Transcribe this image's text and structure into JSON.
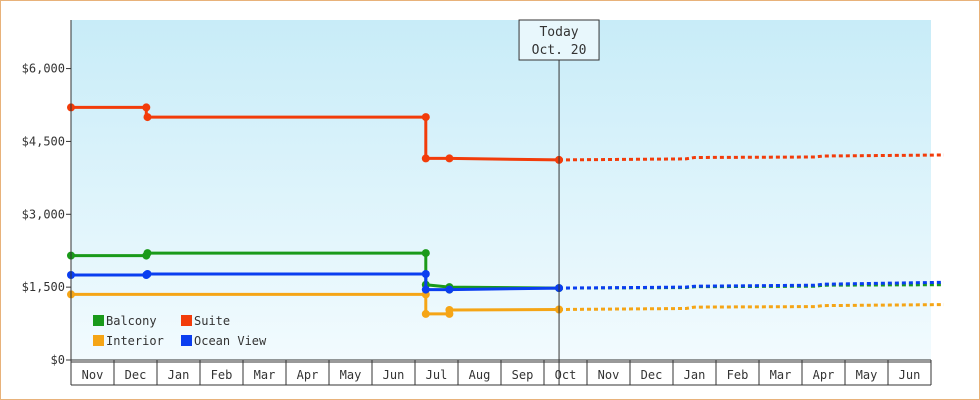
{
  "chart_data": {
    "type": "line",
    "step": true,
    "ylim": [
      0,
      7000
    ],
    "y_ticks": [
      0,
      1500,
      3000,
      4500,
      6000
    ],
    "y_tick_labels": [
      "$0",
      "$1,500",
      "$3,000",
      "$4,500",
      "$6,000"
    ],
    "months": [
      "Nov",
      "Dec",
      "Jan",
      "Feb",
      "Mar",
      "Apr",
      "May",
      "Jun",
      "Jul",
      "Aug",
      "Sep",
      "Oct",
      "Nov",
      "Dec",
      "Jan",
      "Feb",
      "Mar",
      "Apr",
      "May",
      "Jun"
    ],
    "today": {
      "line1": "Today",
      "line2": "Oct. 20",
      "x_month": 11.35
    },
    "grid": false,
    "legend_position": "bottom-left",
    "colors": {
      "plot_top": "#c8ecf8",
      "plot_bottom": "#f2fbfe",
      "frame_border": "#e8b27a",
      "axis": "#333333"
    },
    "series": [
      {
        "name": "Balcony",
        "color": "#1a9a1a",
        "points": [
          [
            0.0,
            2150
          ],
          [
            1.75,
            2150
          ],
          [
            1.75,
            2200
          ],
          [
            8.25,
            2200
          ],
          [
            8.25,
            1550
          ],
          [
            8.8,
            1500
          ],
          [
            11.35,
            1480
          ]
        ],
        "markers": [
          [
            0.0,
            2150
          ],
          [
            1.75,
            2150
          ],
          [
            1.78,
            2200
          ],
          [
            8.25,
            2200
          ],
          [
            8.25,
            1550
          ],
          [
            8.8,
            1500
          ],
          [
            8.8,
            1450
          ],
          [
            11.35,
            1480
          ]
        ],
        "forecast": [
          [
            11.35,
            1480
          ],
          [
            14.3,
            1490
          ],
          [
            14.5,
            1510
          ],
          [
            17.3,
            1520
          ],
          [
            17.5,
            1540
          ],
          [
            20.3,
            1550
          ],
          [
            20.3,
            1550
          ]
        ]
      },
      {
        "name": "Suite",
        "color": "#f23c0a",
        "points": [
          [
            0.0,
            5200
          ],
          [
            1.75,
            5200
          ],
          [
            1.75,
            5000
          ],
          [
            8.25,
            5000
          ],
          [
            8.25,
            4150
          ],
          [
            8.8,
            4150
          ],
          [
            11.35,
            4120
          ]
        ],
        "markers": [
          [
            0.0,
            5200
          ],
          [
            1.75,
            5200
          ],
          [
            1.78,
            5000
          ],
          [
            8.25,
            5000
          ],
          [
            8.25,
            4150
          ],
          [
            8.8,
            4150
          ],
          [
            11.35,
            4120
          ]
        ],
        "forecast": [
          [
            11.35,
            4120
          ],
          [
            14.3,
            4140
          ],
          [
            14.5,
            4170
          ],
          [
            17.3,
            4180
          ],
          [
            17.5,
            4200
          ],
          [
            20.3,
            4220
          ]
        ]
      },
      {
        "name": "Interior",
        "color": "#f5a516",
        "points": [
          [
            0.0,
            1350
          ],
          [
            8.25,
            1350
          ],
          [
            8.25,
            950
          ],
          [
            8.8,
            950
          ],
          [
            8.8,
            1030
          ],
          [
            11.35,
            1040
          ]
        ],
        "markers": [
          [
            0.0,
            1350
          ],
          [
            8.25,
            1350
          ],
          [
            8.25,
            950
          ],
          [
            8.8,
            950
          ],
          [
            8.8,
            1030
          ],
          [
            11.35,
            1040
          ]
        ],
        "forecast": [
          [
            11.35,
            1040
          ],
          [
            14.3,
            1060
          ],
          [
            14.5,
            1090
          ],
          [
            17.3,
            1100
          ],
          [
            17.5,
            1120
          ],
          [
            20.3,
            1140
          ]
        ]
      },
      {
        "name": "Ocean View",
        "color": "#0a3ef0",
        "points": [
          [
            0.0,
            1750
          ],
          [
            1.75,
            1750
          ],
          [
            1.75,
            1770
          ],
          [
            8.25,
            1770
          ],
          [
            8.25,
            1450
          ],
          [
            8.8,
            1450
          ],
          [
            11.35,
            1480
          ]
        ],
        "markers": [
          [
            0.0,
            1750
          ],
          [
            1.75,
            1750
          ],
          [
            1.78,
            1770
          ],
          [
            8.25,
            1770
          ],
          [
            8.25,
            1450
          ],
          [
            8.8,
            1450
          ],
          [
            11.35,
            1480
          ]
        ],
        "forecast": [
          [
            11.35,
            1480
          ],
          [
            14.3,
            1500
          ],
          [
            14.5,
            1520
          ],
          [
            17.3,
            1540
          ],
          [
            17.5,
            1560
          ],
          [
            20.3,
            1600
          ]
        ]
      }
    ],
    "legend_order": [
      "Balcony",
      "Suite",
      "Interior",
      "Ocean View"
    ]
  }
}
